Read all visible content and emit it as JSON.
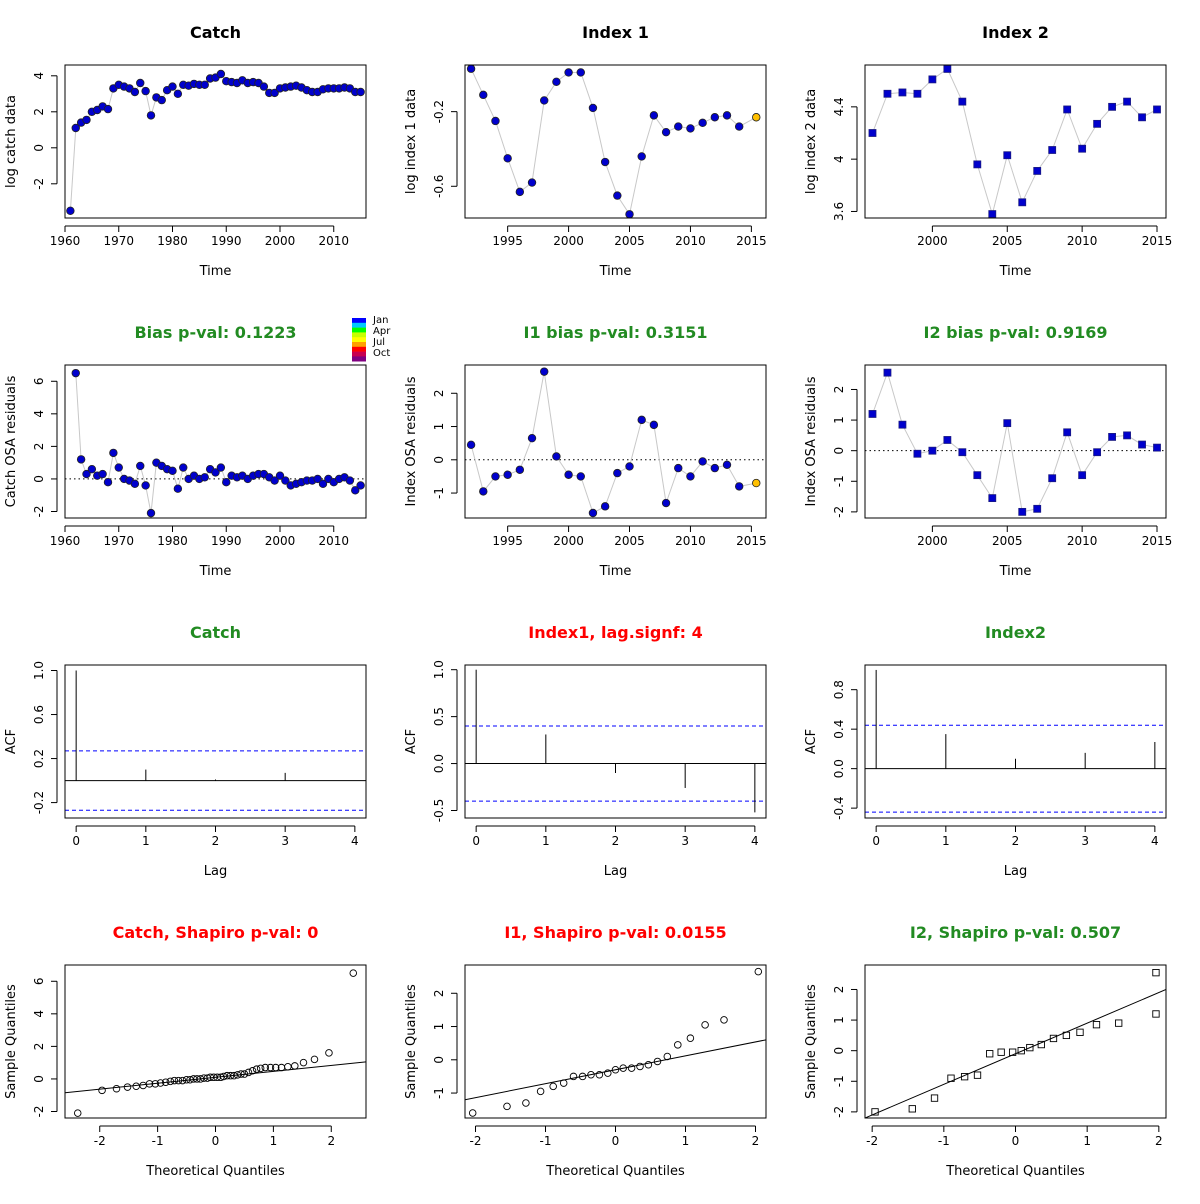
{
  "colors": {
    "point_fill": "#0000CD",
    "highlight_fill": "#FFC000",
    "line": "#C8C8C8",
    "ci_line": "#0000FF",
    "green": "#228B22",
    "red": "#FF0000",
    "black": "#000000"
  },
  "month_legend": {
    "labels": [
      "Jan",
      "Apr",
      "Jul",
      "Oct"
    ],
    "colors": [
      "#0000FF",
      "#00C8FF",
      "#00FF00",
      "#C8FF00",
      "#FFFF00",
      "#FFA000",
      "#FF0000",
      "#C80050",
      "#800080"
    ]
  },
  "chart_data": [
    {
      "id": "catch-obs",
      "type": "line",
      "title": "Catch",
      "title_color": "black",
      "xlabel": "Time",
      "ylabel": "log catch data",
      "xlim": [
        1960,
        2016
      ],
      "ylim": [
        -3.9,
        4.6
      ],
      "xticks": [
        1960,
        1970,
        1980,
        1990,
        2000,
        2010
      ],
      "yticks": [
        -2,
        0,
        2,
        4
      ],
      "marker": "circle",
      "x": [
        1961,
        1962,
        1963,
        1964,
        1965,
        1966,
        1967,
        1968,
        1969,
        1970,
        1971,
        1972,
        1973,
        1974,
        1975,
        1976,
        1977,
        1978,
        1979,
        1980,
        1981,
        1982,
        1983,
        1984,
        1985,
        1986,
        1987,
        1988,
        1989,
        1990,
        1991,
        1992,
        1993,
        1994,
        1995,
        1996,
        1997,
        1998,
        1999,
        2000,
        2001,
        2002,
        2003,
        2004,
        2005,
        2006,
        2007,
        2008,
        2009,
        2010,
        2011,
        2012,
        2013,
        2014,
        2015
      ],
      "y": [
        -3.5,
        1.1,
        1.4,
        1.55,
        2.0,
        2.1,
        2.3,
        2.15,
        3.3,
        3.5,
        3.4,
        3.3,
        3.1,
        3.6,
        3.15,
        1.8,
        2.8,
        2.65,
        3.2,
        3.4,
        3.0,
        3.5,
        3.45,
        3.55,
        3.5,
        3.5,
        3.85,
        3.9,
        4.1,
        3.7,
        3.65,
        3.6,
        3.75,
        3.6,
        3.65,
        3.6,
        3.4,
        3.05,
        3.05,
        3.3,
        3.35,
        3.4,
        3.45,
        3.35,
        3.2,
        3.1,
        3.1,
        3.25,
        3.3,
        3.3,
        3.3,
        3.35,
        3.3,
        3.1,
        3.1
      ]
    },
    {
      "id": "index1-obs",
      "type": "line",
      "title": "Index 1",
      "title_color": "black",
      "xlabel": "Time",
      "ylabel": "log index 1 data",
      "xlim": [
        1991.5,
        2016.2
      ],
      "ylim": [
        -0.77,
        0.05
      ],
      "xticks": [
        1995,
        2000,
        2005,
        2010,
        2015
      ],
      "yticks": [
        -0.6,
        -0.2
      ],
      "ytick_labels": [
        "-0.6",
        "-0.2"
      ],
      "marker": "circle",
      "x": [
        1992,
        1993,
        1994,
        1995,
        1996,
        1997,
        1998,
        1999,
        2000,
        2001,
        2002,
        2003,
        2004,
        2005,
        2006,
        2007,
        2008,
        2009,
        2010,
        2011,
        2012,
        2013,
        2014,
        2015.4
      ],
      "y": [
        0.03,
        -0.11,
        -0.25,
        -0.45,
        -0.63,
        -0.58,
        -0.14,
        -0.04,
        0.01,
        0.01,
        -0.18,
        -0.47,
        -0.65,
        -0.75,
        -0.44,
        -0.22,
        -0.31,
        -0.28,
        -0.29,
        -0.26,
        -0.23,
        -0.22,
        -0.28,
        -0.23
      ],
      "highlight_last": true
    },
    {
      "id": "index2-obs",
      "type": "line",
      "title": "Index 2",
      "title_color": "black",
      "xlabel": "Time",
      "ylabel": "log index 2 data",
      "xlim": [
        1995.5,
        2015.6
      ],
      "ylim": [
        3.55,
        4.72
      ],
      "xticks": [
        2000,
        2005,
        2010,
        2015
      ],
      "yticks": [
        3.6,
        4.0,
        4.4
      ],
      "marker": "square",
      "x": [
        1996,
        1997,
        1998,
        1999,
        2000,
        2001,
        2002,
        2003,
        2004,
        2005,
        2006,
        2007,
        2008,
        2009,
        2010,
        2011,
        2012,
        2013,
        2014,
        2015
      ],
      "y": [
        4.2,
        4.5,
        4.51,
        4.5,
        4.61,
        4.69,
        4.44,
        3.96,
        3.58,
        4.03,
        3.67,
        3.91,
        4.07,
        4.38,
        4.08,
        4.27,
        4.4,
        4.44,
        4.32,
        4.38
      ]
    },
    {
      "id": "catch-res",
      "type": "line",
      "title": "Bias p-val: 0.1223",
      "title_color": "green",
      "xlabel": "Time",
      "ylabel": "Catch OSA residuals",
      "xlim": [
        1960,
        2016
      ],
      "ylim": [
        -2.4,
        7.0
      ],
      "xticks": [
        1960,
        1970,
        1980,
        1990,
        2000,
        2010
      ],
      "yticks": [
        -2,
        0,
        2,
        4,
        6
      ],
      "marker": "circle",
      "zero_line": true,
      "x": [
        1962,
        1963,
        1964,
        1965,
        1966,
        1967,
        1968,
        1969,
        1970,
        1971,
        1972,
        1973,
        1974,
        1975,
        1976,
        1977,
        1978,
        1979,
        1980,
        1981,
        1982,
        1983,
        1984,
        1985,
        1986,
        1987,
        1988,
        1989,
        1990,
        1991,
        1992,
        1993,
        1994,
        1995,
        1996,
        1997,
        1998,
        1999,
        2000,
        2001,
        2002,
        2003,
        2004,
        2005,
        2006,
        2007,
        2008,
        2009,
        2010,
        2011,
        2012,
        2013,
        2014,
        2015
      ],
      "y": [
        6.5,
        1.2,
        0.3,
        0.6,
        0.2,
        0.3,
        -0.2,
        1.6,
        0.7,
        0.0,
        -0.1,
        -0.3,
        0.8,
        -0.4,
        -2.1,
        1.0,
        0.8,
        0.6,
        0.5,
        -0.6,
        0.7,
        0.0,
        0.2,
        0.0,
        0.1,
        0.6,
        0.4,
        0.7,
        -0.2,
        0.2,
        0.1,
        0.2,
        0.0,
        0.2,
        0.3,
        0.3,
        0.1,
        -0.1,
        0.2,
        -0.1,
        -0.4,
        -0.3,
        -0.2,
        -0.1,
        -0.1,
        0.0,
        -0.3,
        0.0,
        -0.2,
        0.0,
        0.1,
        -0.1,
        -0.7,
        -0.4
      ]
    },
    {
      "id": "index1-res",
      "type": "line",
      "title": "I1 bias p-val: 0.3151",
      "title_color": "green",
      "xlabel": "Time",
      "ylabel": "Index OSA residuals",
      "xlim": [
        1991.5,
        2016.2
      ],
      "ylim": [
        -1.75,
        2.85
      ],
      "xticks": [
        1995,
        2000,
        2005,
        2010,
        2015
      ],
      "yticks": [
        -1,
        0,
        1,
        2
      ],
      "marker": "circle",
      "zero_line": true,
      "x": [
        1992,
        1993,
        1994,
        1995,
        1996,
        1997,
        1998,
        1999,
        2000,
        2001,
        2002,
        2003,
        2004,
        2005,
        2006,
        2007,
        2008,
        2009,
        2010,
        2011,
        2012,
        2013,
        2014,
        2015.4
      ],
      "y": [
        0.45,
        -0.95,
        -0.5,
        -0.45,
        -0.3,
        0.65,
        2.65,
        0.1,
        -0.45,
        -0.5,
        -1.6,
        -1.4,
        -0.4,
        -0.2,
        1.2,
        1.05,
        -1.3,
        -0.25,
        -0.5,
        -0.05,
        -0.25,
        -0.15,
        -0.8,
        -0.7
      ],
      "highlight_last": true
    },
    {
      "id": "index2-res",
      "type": "line",
      "title": "I2 bias p-val: 0.9169",
      "title_color": "green",
      "xlabel": "Time",
      "ylabel": "Index OSA residuals",
      "xlim": [
        1995.5,
        2015.6
      ],
      "ylim": [
        -2.2,
        2.8
      ],
      "xticks": [
        2000,
        2005,
        2010,
        2015
      ],
      "yticks": [
        -2,
        -1,
        0,
        1,
        2
      ],
      "marker": "square",
      "zero_line": true,
      "x": [
        1996,
        1997,
        1998,
        1999,
        2000,
        2001,
        2002,
        2003,
        2004,
        2005,
        2006,
        2007,
        2008,
        2009,
        2010,
        2011,
        2012,
        2013,
        2014,
        2015
      ],
      "y": [
        1.2,
        2.55,
        0.85,
        -0.1,
        0.0,
        0.35,
        -0.05,
        -0.8,
        -1.55,
        0.9,
        -2.0,
        -1.9,
        -0.9,
        0.6,
        -0.8,
        -0.05,
        0.45,
        0.5,
        0.2,
        0.1
      ]
    },
    {
      "id": "catch-acf",
      "type": "bar",
      "title": "Catch",
      "title_color": "green",
      "xlabel": "Lag",
      "ylabel": "ACF",
      "xlim": [
        -0.16,
        4.16
      ],
      "ylim": [
        -0.34,
        1.05
      ],
      "xticks": [
        0,
        1,
        2,
        3,
        4
      ],
      "yticks": [
        -0.2,
        0.2,
        0.6,
        1.0
      ],
      "ytick_labels": [
        "-0.2",
        "0.2",
        "0.6",
        "1.0"
      ],
      "lags": [
        0,
        1,
        2,
        3
      ],
      "values": [
        1.0,
        0.1,
        0.01,
        0.07
      ],
      "ci": 0.27
    },
    {
      "id": "index1-acf",
      "type": "bar",
      "title": "Index1, lag.signf: 4",
      "title_color": "red",
      "xlabel": "Lag",
      "ylabel": "ACF",
      "xlim": [
        -0.16,
        4.16
      ],
      "ylim": [
        -0.58,
        1.05
      ],
      "xticks": [
        0,
        1,
        2,
        3,
        4
      ],
      "yticks": [
        -0.5,
        0.0,
        0.5,
        1.0
      ],
      "ytick_labels": [
        "-0.5",
        "0.0",
        "0.5",
        "1.0"
      ],
      "lags": [
        0,
        1,
        2,
        3,
        4
      ],
      "values": [
        1.0,
        0.31,
        -0.1,
        -0.26,
        -0.52
      ],
      "ci": 0.4
    },
    {
      "id": "index2-acf",
      "type": "bar",
      "title": "Index2",
      "title_color": "green",
      "xlabel": "Lag",
      "ylabel": "ACF",
      "xlim": [
        -0.16,
        4.16
      ],
      "ylim": [
        -0.5,
        1.05
      ],
      "xticks": [
        0,
        1,
        2,
        3,
        4
      ],
      "yticks": [
        -0.4,
        0.0,
        0.4,
        0.8
      ],
      "ytick_labels": [
        "-0.4",
        "0.0",
        "0.4",
        "0.8"
      ],
      "lags": [
        0,
        1,
        2,
        3,
        4
      ],
      "values": [
        1.0,
        0.35,
        0.1,
        0.16,
        0.27
      ],
      "ci": 0.44
    },
    {
      "id": "catch-qq",
      "type": "scatter",
      "title": "Catch, Shapiro p-val: 0",
      "title_color": "red",
      "xlabel": "Theoretical Quantiles",
      "ylabel": "Sample Quantiles",
      "xlim": [
        -2.6,
        2.6
      ],
      "ylim": [
        -2.4,
        7.0
      ],
      "xticks": [
        -2,
        -1,
        0,
        1,
        2
      ],
      "yticks": [
        -2,
        0,
        2,
        4,
        6
      ],
      "marker": "open-circle",
      "x": [
        -2.38,
        -1.96,
        -1.71,
        -1.52,
        -1.37,
        -1.25,
        -1.14,
        -1.04,
        -0.95,
        -0.86,
        -0.78,
        -0.71,
        -0.64,
        -0.57,
        -0.5,
        -0.44,
        -0.38,
        -0.32,
        -0.26,
        -0.2,
        -0.14,
        -0.09,
        -0.03,
        0.03,
        0.09,
        0.14,
        0.2,
        0.26,
        0.32,
        0.38,
        0.44,
        0.5,
        0.57,
        0.64,
        0.71,
        0.78,
        0.86,
        0.95,
        1.04,
        1.14,
        1.25,
        1.37,
        1.52,
        1.71,
        1.96,
        2.38
      ],
      "y": [
        -2.1,
        -0.7,
        -0.6,
        -0.5,
        -0.45,
        -0.4,
        -0.3,
        -0.3,
        -0.25,
        -0.2,
        -0.15,
        -0.1,
        -0.1,
        -0.1,
        -0.05,
        -0.05,
        0.0,
        0.0,
        0.0,
        0.05,
        0.05,
        0.1,
        0.1,
        0.1,
        0.1,
        0.15,
        0.2,
        0.2,
        0.2,
        0.25,
        0.3,
        0.3,
        0.4,
        0.5,
        0.6,
        0.65,
        0.7,
        0.7,
        0.7,
        0.7,
        0.75,
        0.8,
        1.0,
        1.2,
        1.6,
        6.5
      ],
      "ref_line": {
        "x": [
          -2.6,
          2.6
        ],
        "y": [
          -0.85,
          1.05
        ]
      }
    },
    {
      "id": "index1-qq",
      "type": "scatter",
      "title": "I1, Shapiro p-val: 0.0155",
      "title_color": "red",
      "xlabel": "Theoretical Quantiles",
      "ylabel": "Sample Quantiles",
      "xlim": [
        -2.15,
        2.15
      ],
      "ylim": [
        -1.75,
        2.85
      ],
      "xticks": [
        -2,
        -1,
        0,
        1,
        2
      ],
      "yticks": [
        -1,
        0,
        1,
        2
      ],
      "marker": "open-circle",
      "x": [
        -2.04,
        -1.55,
        -1.28,
        -1.07,
        -0.89,
        -0.74,
        -0.6,
        -0.47,
        -0.35,
        -0.23,
        -0.11,
        0.0,
        0.11,
        0.23,
        0.35,
        0.47,
        0.6,
        0.74,
        0.89,
        1.07,
        1.28,
        1.55,
        2.04
      ],
      "y": [
        -1.6,
        -1.4,
        -1.3,
        -0.95,
        -0.8,
        -0.7,
        -0.5,
        -0.5,
        -0.45,
        -0.45,
        -0.4,
        -0.3,
        -0.25,
        -0.25,
        -0.2,
        -0.15,
        -0.05,
        0.1,
        0.45,
        0.65,
        1.05,
        1.2,
        2.65
      ],
      "ref_line": {
        "x": [
          -2.15,
          2.15
        ],
        "y": [
          -1.2,
          0.6
        ]
      }
    },
    {
      "id": "index2-qq",
      "type": "scatter",
      "title": "I2, Shapiro p-val: 0.507",
      "title_color": "green",
      "xlabel": "Theoretical Quantiles",
      "ylabel": "Sample Quantiles",
      "xlim": [
        -2.1,
        2.1
      ],
      "ylim": [
        -2.2,
        2.8
      ],
      "xticks": [
        -2,
        -1,
        0,
        1,
        2
      ],
      "yticks": [
        -2,
        -1,
        0,
        1,
        2
      ],
      "marker": "open-square",
      "x": [
        -1.96,
        -1.44,
        -1.13,
        -0.9,
        -0.71,
        -0.53,
        -0.36,
        -0.2,
        -0.04,
        0.08,
        0.2,
        0.36,
        0.53,
        0.71,
        0.9,
        1.13,
        1.44,
        1.96
      ],
      "y": [
        -2.0,
        -1.9,
        -1.55,
        -0.9,
        -0.85,
        -0.8,
        -0.1,
        -0.05,
        -0.05,
        0.0,
        0.1,
        0.2,
        0.4,
        0.5,
        0.6,
        0.85,
        0.9,
        1.2
      ],
      "x_last": 1.96,
      "y_last": 2.55,
      "ref_line": {
        "x": [
          -2.1,
          2.1
        ],
        "y": [
          -2.2,
          2.0
        ]
      }
    }
  ]
}
